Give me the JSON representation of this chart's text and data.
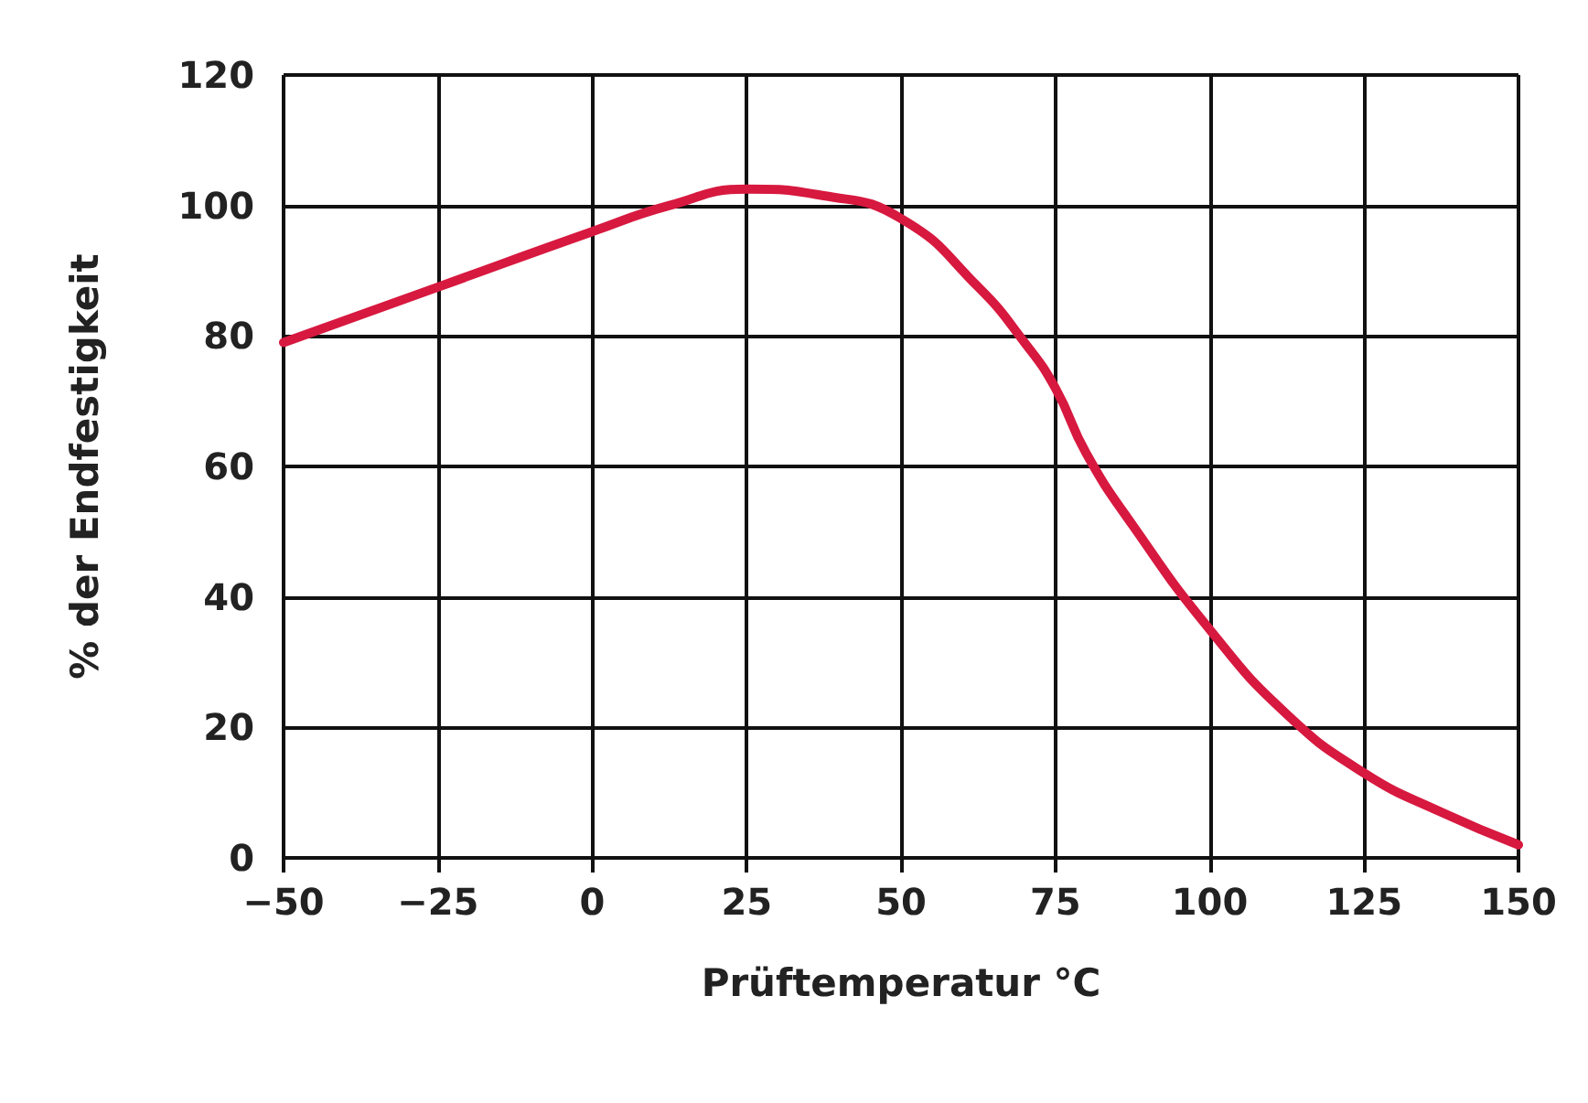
{
  "chart_data": {
    "type": "line",
    "xlabel": "Prüftemperatur °C",
    "ylabel": "% der Endfestigkeit",
    "x": [
      -50,
      -25,
      0,
      12.5,
      25,
      37.5,
      50,
      62.5,
      70,
      75,
      80,
      87.5,
      100,
      112.5,
      125,
      137.5,
      150
    ],
    "series": [
      {
        "color": "#d7193f",
        "values": [
          79,
          87.5,
          96,
          100,
          102.5,
          101.5,
          98,
          87.5,
          79,
          72,
          62,
          51,
          35,
          22,
          13,
          7,
          2
        ]
      }
    ],
    "xlim": [
      -50,
      150
    ],
    "xticks": [
      -50,
      -25,
      0,
      25,
      50,
      75,
      100,
      125,
      150
    ],
    "ylim": [
      0,
      120
    ],
    "yticks": [
      0,
      20,
      40,
      60,
      80,
      100,
      120
    ],
    "grid": true,
    "marker": "none",
    "line_style": "solid"
  }
}
